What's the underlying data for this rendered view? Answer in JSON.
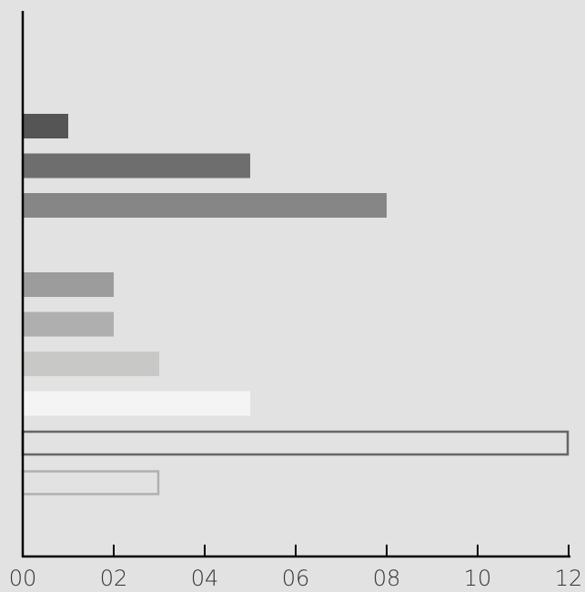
{
  "chart_data": {
    "type": "bar",
    "orientation": "horizontal",
    "xlim": [
      0,
      12
    ],
    "x_ticks": [
      "00",
      "02",
      "04",
      "06",
      "08",
      "10",
      "12"
    ],
    "grid": false,
    "legend": "none",
    "bars": [
      {
        "slot": 0,
        "value": 1,
        "fill": "#555555",
        "outline": "none"
      },
      {
        "slot": 1,
        "value": 5,
        "fill": "#6e6e6e",
        "outline": "none"
      },
      {
        "slot": 2,
        "value": 8,
        "fill": "#868686",
        "outline": "none"
      },
      {
        "slot": 4,
        "value": 2,
        "fill": "#9c9c9c",
        "outline": "none"
      },
      {
        "slot": 5,
        "value": 2,
        "fill": "#afafaf",
        "outline": "none"
      },
      {
        "slot": 6,
        "value": 3,
        "fill": "#c8c8c6",
        "outline": "none"
      },
      {
        "slot": 7,
        "value": 5,
        "fill": "#f4f4f4",
        "outline": "none"
      },
      {
        "slot": 8,
        "value": 12,
        "fill": "#e2e2e2",
        "outline": "#666666"
      },
      {
        "slot": 9,
        "value": 3,
        "fill": "#e2e2e2",
        "outline": "#b0b0b0"
      }
    ]
  }
}
